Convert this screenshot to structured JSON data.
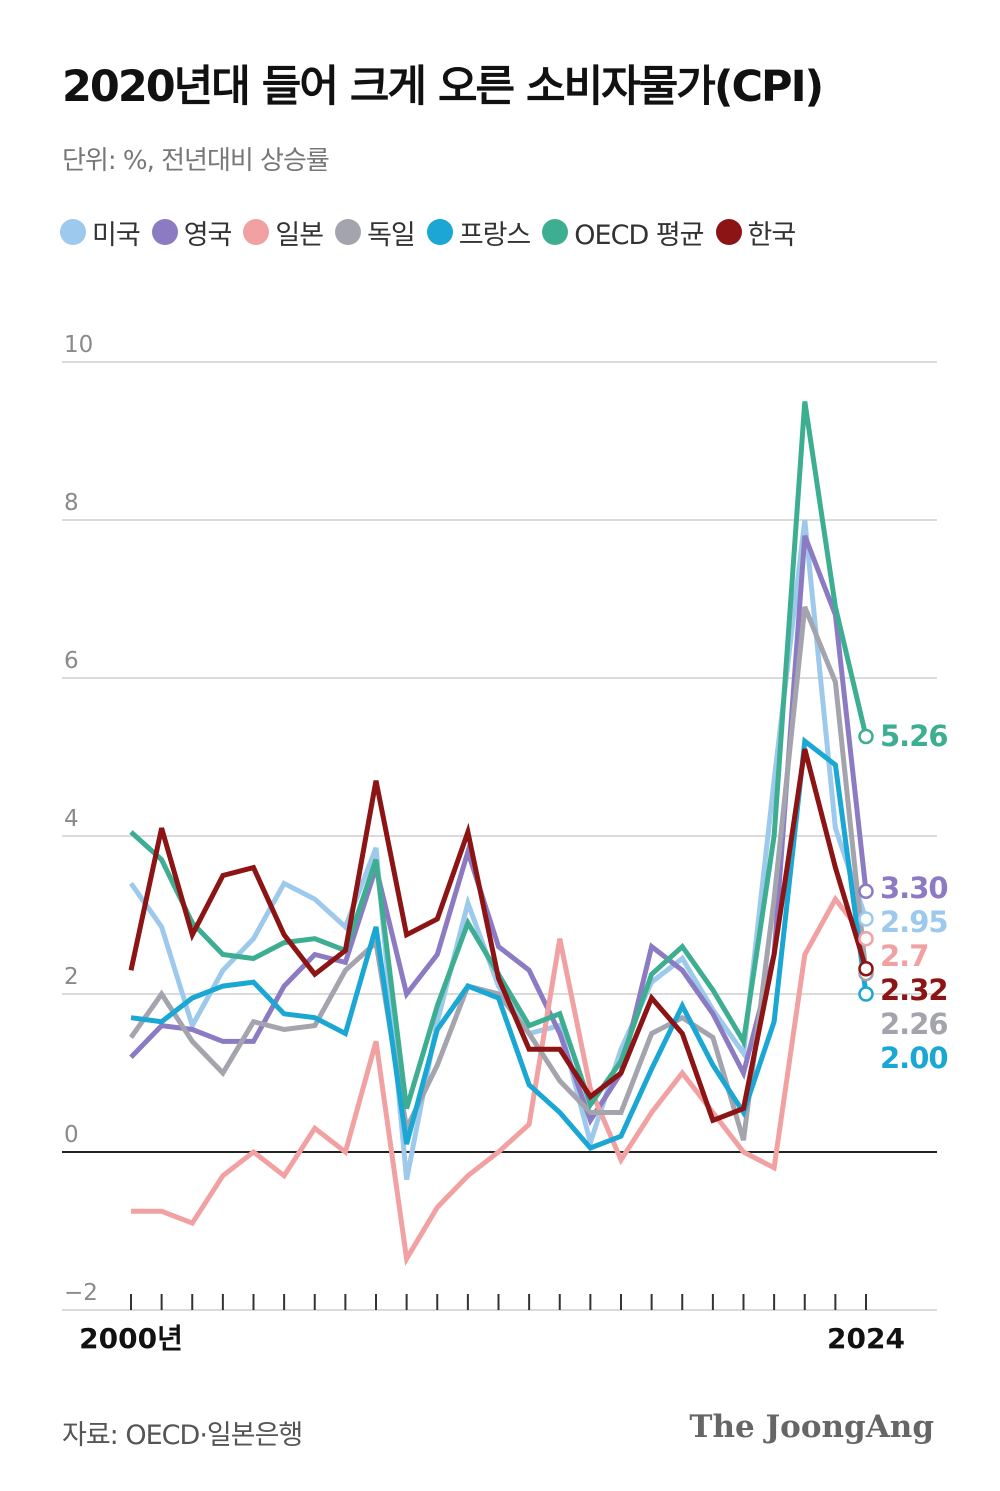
{
  "title": "2020년대 들어 크게 오른 소비자물가(CPI)",
  "subtitle": "단위: %, 전년대비 상승률",
  "source": "자료: OECD·일본은행",
  "logo": "The JoongAng",
  "chart_data": {
    "type": "line",
    "xlim": [
      2000,
      2024
    ],
    "ylim": [
      -2,
      10
    ],
    "yticks": [
      10,
      8,
      6,
      4,
      2,
      0,
      -2
    ],
    "ytick_labels": [
      "10",
      "8",
      "6",
      "4",
      "2",
      "0",
      "−2"
    ],
    "x_end_labels": [
      "2000년",
      "2024"
    ],
    "legend_placement": "top",
    "grid": true,
    "x": [
      2000,
      2001,
      2002,
      2003,
      2004,
      2005,
      2006,
      2007,
      2008,
      2009,
      2010,
      2011,
      2012,
      2013,
      2014,
      2015,
      2016,
      2017,
      2018,
      2019,
      2020,
      2021,
      2022,
      2023,
      2024
    ],
    "series": [
      {
        "name": "미국",
        "color": "#9dc9ec",
        "values": [
          3.4,
          2.85,
          1.6,
          2.3,
          2.7,
          3.4,
          3.2,
          2.85,
          3.85,
          -0.35,
          1.65,
          3.15,
          2.1,
          1.5,
          1.6,
          0.12,
          1.3,
          2.15,
          2.45,
          1.8,
          1.25,
          4.7,
          8.0,
          4.1,
          2.95
        ]
      },
      {
        "name": "영국",
        "color": "#8c7bc3",
        "values": [
          1.2,
          1.6,
          1.55,
          1.4,
          1.4,
          2.1,
          2.5,
          2.4,
          3.6,
          2.0,
          2.5,
          3.8,
          2.6,
          2.3,
          1.5,
          0.4,
          1.0,
          2.6,
          2.3,
          1.75,
          1.0,
          2.5,
          7.8,
          6.8,
          3.3
        ]
      },
      {
        "name": "일본",
        "color": "#f2a1a3",
        "values": [
          -0.75,
          -0.75,
          -0.9,
          -0.3,
          0.0,
          -0.3,
          0.3,
          0.0,
          1.4,
          -1.35,
          -0.7,
          -0.3,
          0.0,
          0.35,
          2.7,
          0.8,
          -0.1,
          0.5,
          1.0,
          0.5,
          0.0,
          -0.2,
          2.5,
          3.2,
          2.7
        ]
      },
      {
        "name": "독일",
        "color": "#a3a4ad",
        "values": [
          1.45,
          2.0,
          1.4,
          1.0,
          1.65,
          1.55,
          1.6,
          2.3,
          2.65,
          0.3,
          1.1,
          2.1,
          2.0,
          1.5,
          0.9,
          0.5,
          0.5,
          1.5,
          1.7,
          1.45,
          0.15,
          3.2,
          6.9,
          5.95,
          2.26
        ]
      },
      {
        "name": "프랑스",
        "color": "#1aa7d3",
        "values": [
          1.7,
          1.65,
          1.95,
          2.1,
          2.15,
          1.75,
          1.7,
          1.5,
          2.85,
          0.1,
          1.55,
          2.1,
          1.95,
          0.85,
          0.5,
          0.05,
          0.2,
          1.05,
          1.85,
          1.1,
          0.5,
          1.65,
          5.2,
          4.9,
          2.0
        ]
      },
      {
        "name": "OECD 평균",
        "color": "#3dae91",
        "values": [
          4.05,
          3.7,
          2.9,
          2.5,
          2.45,
          2.65,
          2.7,
          2.55,
          3.7,
          0.55,
          1.85,
          2.9,
          2.25,
          1.6,
          1.75,
          0.6,
          1.15,
          2.25,
          2.6,
          2.05,
          1.4,
          4.0,
          9.5,
          6.9,
          5.26
        ]
      },
      {
        "name": "한국",
        "color": "#8c1414",
        "values": [
          2.3,
          4.1,
          2.75,
          3.5,
          3.6,
          2.75,
          2.25,
          2.55,
          4.7,
          2.75,
          2.95,
          4.05,
          2.2,
          1.3,
          1.3,
          0.7,
          1.0,
          1.95,
          1.5,
          0.4,
          0.55,
          2.5,
          5.1,
          3.6,
          2.32
        ]
      }
    ],
    "end_labels": [
      {
        "series": "OECD 평균",
        "text": "5.26",
        "color": "#3dae91"
      },
      {
        "series": "영국",
        "text": "3.30",
        "color": "#8c7bc3"
      },
      {
        "series": "미국",
        "text": "2.95",
        "color": "#9dc9ec"
      },
      {
        "series": "일본",
        "text": "2.7",
        "color": "#f2a1a3"
      },
      {
        "series": "한국",
        "text": "2.32",
        "color": "#8c1414"
      },
      {
        "series": "독일",
        "text": "2.26",
        "color": "#a3a4ad"
      },
      {
        "series": "프랑스",
        "text": "2.00",
        "color": "#1aa7d3"
      }
    ]
  }
}
